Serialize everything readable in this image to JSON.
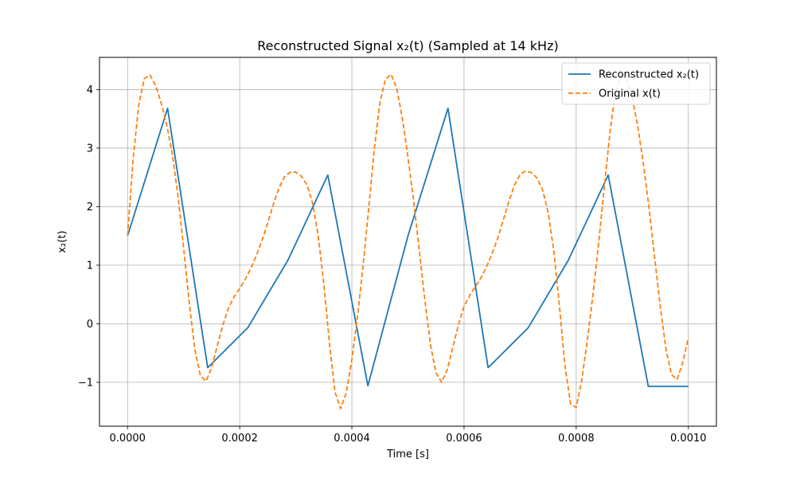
{
  "chart_data": {
    "type": "line",
    "title": "Reconstructed Signal x₂(t) (Sampled at 14 kHz)",
    "xlabel": "Time [s]",
    "ylabel": "x₂(t)",
    "xlim": [
      -5e-05,
      0.00105
    ],
    "ylim": [
      -1.75,
      4.55
    ],
    "xticks": [
      0,
      0.0002,
      0.0004,
      0.0006,
      0.0008,
      0.001
    ],
    "xtick_labels": [
      "0.0000",
      "0.0002",
      "0.0004",
      "0.0006",
      "0.0008",
      "0.0010"
    ],
    "yticks": [
      -1,
      0,
      1,
      2,
      3,
      4
    ],
    "ytick_labels": [
      "−1",
      "0",
      "1",
      "2",
      "3",
      "4"
    ],
    "grid": true,
    "legend_position": "top-right",
    "series": [
      {
        "name": "Reconstructed x₂(t)",
        "color": "#1f77b4",
        "style": "solid",
        "x": [
          0,
          7.14e-05,
          0.0001429,
          0.0002143,
          0.0002857,
          0.0003571,
          0.0004286,
          0.0005,
          0.0005714,
          0.0006429,
          0.0007143,
          0.0007857,
          0.0008571,
          0.0009286,
          0.001
        ],
        "y": [
          1.5,
          3.68,
          -0.75,
          -0.07,
          1.08,
          2.54,
          -1.06,
          1.5,
          3.68,
          -0.75,
          -0.07,
          1.08,
          2.54,
          -1.07,
          -1.07
        ]
      },
      {
        "name": "Original x(t)",
        "color": "#ff7f0e",
        "style": "dashed",
        "x": [
          0,
          1e-05,
          2e-05,
          3e-05,
          4e-05,
          5e-05,
          6e-05,
          7e-05,
          8e-05,
          9e-05,
          0.0001,
          0.00011,
          0.00012,
          0.00013,
          0.00014,
          0.00015,
          0.00016,
          0.00017,
          0.00018,
          0.00019,
          0.0002,
          0.00021,
          0.00022,
          0.00023,
          0.00024,
          0.00025,
          0.00026,
          0.00027,
          0.00028,
          0.00029,
          0.0003,
          0.00031,
          0.00032,
          0.00033,
          0.00034,
          0.00035,
          0.00036,
          0.00037,
          0.00038,
          0.00039,
          0.0004,
          0.00041,
          0.00042,
          0.00043,
          0.00044,
          0.00045,
          0.00046,
          0.00047,
          0.00048,
          0.00049,
          0.0005,
          0.00051,
          0.00052,
          0.00053,
          0.00054,
          0.00055,
          0.00056,
          0.00057,
          0.00058,
          0.00059,
          0.0006,
          0.00061,
          0.00062,
          0.00063,
          0.00064,
          0.00065,
          0.00066,
          0.00067,
          0.00068,
          0.00069,
          0.0007,
          0.00071,
          0.00072,
          0.00073,
          0.00074,
          0.00075,
          0.00076,
          0.00077,
          0.00078,
          0.00079,
          0.0008,
          0.00081,
          0.00082,
          0.00083,
          0.00084,
          0.00085,
          0.00086,
          0.00087,
          0.00088,
          0.00089,
          0.0009,
          0.00091,
          0.00092,
          0.00093,
          0.00094,
          0.00095,
          0.00096,
          0.00097,
          0.00098,
          0.00099,
          0.001
        ],
        "y": [
          1.5,
          2.82,
          3.74,
          4.19,
          4.25,
          4.07,
          3.77,
          3.39,
          2.89,
          2.18,
          1.3,
          0.36,
          -0.44,
          -0.89,
          -0.98,
          -0.75,
          -0.38,
          -0.02,
          0.27,
          0.46,
          0.6,
          0.76,
          0.95,
          1.17,
          1.43,
          1.72,
          2.04,
          2.32,
          2.51,
          2.59,
          2.59,
          2.52,
          2.37,
          2.06,
          1.5,
          0.68,
          -0.33,
          -1.17,
          -1.45,
          -1.18,
          -0.61,
          0.12,
          0.99,
          1.97,
          2.98,
          3.78,
          4.18,
          4.26,
          4.02,
          3.51,
          2.85,
          2.11,
          1.27,
          0.42,
          -0.35,
          -0.84,
          -1.0,
          -0.79,
          -0.4,
          -0.02,
          0.3,
          0.48,
          0.63,
          0.78,
          0.97,
          1.2,
          1.46,
          1.77,
          2.09,
          2.37,
          2.55,
          2.61,
          2.58,
          2.49,
          2.29,
          1.9,
          1.25,
          0.32,
          -0.72,
          -1.37,
          -1.43,
          -0.96,
          -0.27,
          0.5,
          1.38,
          2.32,
          3.25,
          3.96,
          4.24,
          4.19,
          3.86,
          3.36,
          2.72,
          1.97,
          1.12,
          0.29,
          -0.43,
          -0.87,
          -0.95,
          -0.66,
          -0.24
        ]
      }
    ]
  }
}
